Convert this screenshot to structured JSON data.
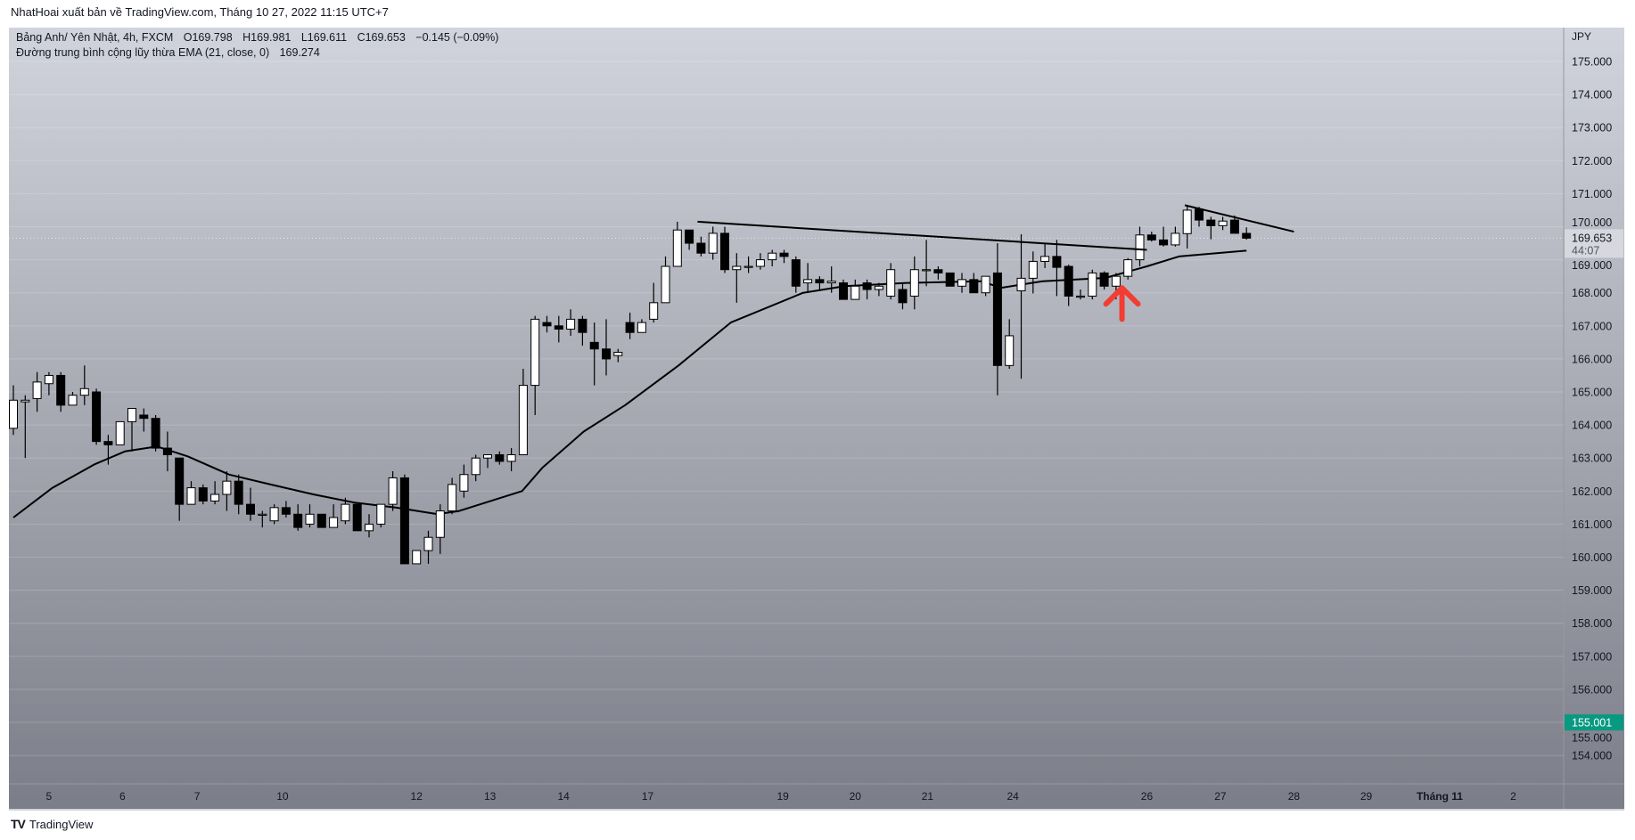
{
  "header": {
    "publisher_line": "NhatHoai xuất bản về TradingView.com, Tháng 10 27, 2022 11:15 UTC+7"
  },
  "legend": {
    "symbol": "Bảng Anh/ Yên Nhật, 4h, FXCM",
    "open": "O169.798",
    "high": "H169.981",
    "low": "L169.611",
    "close": "C169.653",
    "change": "−0.145 (−0.09%)",
    "ema_label": "Đường trung bình cộng lũy thừa EMA (21, close, 0)",
    "ema_value": "169.274"
  },
  "footer": {
    "logo_text": "TradingView"
  },
  "colors": {
    "up": "#ffffff",
    "down": "#000000",
    "ema": "#000000",
    "arrow": "#f23d33",
    "alert_label": "#089981",
    "price_label": "#d6d8de"
  },
  "chart_data": {
    "type": "candlestick",
    "currency": "JPY",
    "ylim": [
      153.2,
      175.6
    ],
    "y_ticks": [
      "175.000",
      "174.000",
      "173.000",
      "172.000",
      "171.000",
      "170.000",
      "169.000",
      "168.000",
      "167.000",
      "166.000",
      "165.000",
      "164.000",
      "163.000",
      "162.000",
      "161.000",
      "160.000",
      "159.000",
      "158.000",
      "157.000",
      "156.000",
      "155.000",
      "154.000"
    ],
    "x_ticks": [
      {
        "label": "5",
        "bar": 3
      },
      {
        "label": "6",
        "bar": 9.2
      },
      {
        "label": "7",
        "bar": 15.5
      },
      {
        "label": "10",
        "bar": 22.7
      },
      {
        "label": "12",
        "bar": 34
      },
      {
        "label": "13",
        "bar": 40.2
      },
      {
        "label": "14",
        "bar": 46.4
      },
      {
        "label": "17",
        "bar": 53.5
      },
      {
        "label": "19",
        "bar": 64.9
      },
      {
        "label": "20",
        "bar": 71
      },
      {
        "label": "21",
        "bar": 77.1
      },
      {
        "label": "24",
        "bar": 84.3
      },
      {
        "label": "26",
        "bar": 95.6
      },
      {
        "label": "27",
        "bar": 101.8
      },
      {
        "label": "28",
        "bar": 108
      },
      {
        "label": "29",
        "bar": 114.1
      },
      {
        "label": "Tháng 11",
        "bar": 120.3,
        "bold": true
      },
      {
        "label": "2",
        "bar": 126.5
      }
    ],
    "grid": true,
    "ohlc": [
      [
        163.9,
        165.2,
        163.7,
        164.75
      ],
      [
        164.7,
        164.9,
        163.0,
        164.75
      ],
      [
        164.8,
        165.6,
        164.4,
        165.3
      ],
      [
        165.25,
        165.6,
        164.9,
        165.5
      ],
      [
        165.5,
        165.6,
        164.4,
        164.6
      ],
      [
        164.6,
        165.0,
        164.6,
        164.9
      ],
      [
        164.9,
        165.8,
        164.6,
        165.1
      ],
      [
        165.0,
        165.1,
        163.4,
        163.5
      ],
      [
        163.5,
        163.7,
        162.8,
        163.4
      ],
      [
        163.4,
        164.1,
        163.4,
        164.1
      ],
      [
        164.1,
        164.5,
        163.2,
        164.5
      ],
      [
        164.3,
        164.5,
        163.8,
        164.2
      ],
      [
        164.2,
        164.3,
        163.2,
        163.3
      ],
      [
        163.3,
        163.8,
        162.6,
        163.1
      ],
      [
        163.0,
        163.0,
        161.1,
        161.6
      ],
      [
        161.6,
        162.3,
        161.6,
        162.1
      ],
      [
        162.1,
        162.2,
        161.6,
        161.7
      ],
      [
        161.7,
        162.3,
        161.6,
        161.9
      ],
      [
        161.9,
        162.6,
        161.4,
        162.3
      ],
      [
        162.3,
        162.5,
        161.3,
        161.6
      ],
      [
        161.6,
        162.1,
        161.1,
        161.3
      ],
      [
        161.3,
        161.4,
        160.9,
        161.3
      ],
      [
        161.1,
        161.6,
        161.0,
        161.5
      ],
      [
        161.5,
        161.7,
        161.2,
        161.3
      ],
      [
        161.3,
        161.6,
        160.8,
        160.9
      ],
      [
        161.0,
        161.6,
        160.9,
        161.3
      ],
      [
        161.3,
        161.3,
        160.9,
        160.9
      ],
      [
        160.9,
        161.6,
        160.9,
        161.2
      ],
      [
        161.1,
        161.8,
        161.0,
        161.6
      ],
      [
        161.6,
        161.6,
        160.8,
        160.8
      ],
      [
        160.8,
        161.3,
        160.6,
        161.0
      ],
      [
        161.0,
        161.6,
        160.9,
        161.6
      ],
      [
        161.6,
        162.6,
        161.4,
        162.4
      ],
      [
        162.4,
        162.5,
        159.8,
        159.8
      ],
      [
        159.8,
        160.2,
        159.8,
        160.2
      ],
      [
        160.2,
        160.8,
        159.8,
        160.6
      ],
      [
        160.6,
        161.6,
        160.1,
        161.4
      ],
      [
        161.4,
        162.4,
        161.3,
        162.2
      ],
      [
        162.0,
        162.8,
        161.8,
        162.5
      ],
      [
        162.5,
        163.1,
        162.3,
        163.0
      ],
      [
        163.0,
        163.1,
        162.7,
        163.1
      ],
      [
        163.1,
        163.2,
        162.8,
        162.9
      ],
      [
        162.9,
        163.3,
        162.6,
        163.1
      ],
      [
        163.1,
        165.7,
        163.1,
        165.2
      ],
      [
        165.2,
        167.3,
        164.3,
        167.2
      ],
      [
        167.1,
        167.3,
        166.8,
        167.0
      ],
      [
        167.0,
        167.3,
        166.5,
        166.9
      ],
      [
        166.9,
        167.5,
        166.7,
        167.2
      ],
      [
        167.2,
        167.3,
        166.4,
        166.8
      ],
      [
        166.5,
        167.1,
        165.2,
        166.3
      ],
      [
        166.3,
        167.2,
        165.5,
        166.0
      ],
      [
        166.1,
        166.3,
        165.9,
        166.2
      ],
      [
        167.1,
        167.4,
        166.6,
        166.8
      ],
      [
        166.8,
        167.2,
        166.8,
        167.1
      ],
      [
        167.2,
        168.3,
        167.1,
        167.7
      ],
      [
        167.7,
        169.1,
        167.7,
        168.8
      ],
      [
        168.8,
        170.15,
        168.8,
        169.9
      ],
      [
        169.9,
        169.9,
        169.3,
        169.5
      ],
      [
        169.5,
        169.7,
        169.1,
        169.2
      ],
      [
        169.2,
        170.0,
        169.0,
        169.8
      ],
      [
        169.8,
        170.0,
        168.6,
        168.7
      ],
      [
        168.7,
        169.2,
        167.7,
        168.8
      ],
      [
        168.8,
        169.1,
        168.6,
        168.8
      ],
      [
        168.8,
        169.2,
        168.7,
        169.0
      ],
      [
        169.0,
        169.3,
        168.8,
        169.2
      ],
      [
        169.2,
        169.3,
        168.9,
        169.1
      ],
      [
        169.0,
        169.1,
        168.0,
        168.2
      ],
      [
        168.3,
        168.9,
        168.0,
        168.4
      ],
      [
        168.4,
        168.5,
        168.1,
        168.3
      ],
      [
        168.3,
        168.8,
        168.0,
        168.35
      ],
      [
        168.3,
        168.4,
        167.8,
        167.8
      ],
      [
        167.8,
        168.4,
        167.8,
        168.2
      ],
      [
        168.3,
        168.4,
        167.8,
        168.1
      ],
      [
        168.1,
        168.3,
        167.9,
        168.2
      ],
      [
        167.9,
        168.9,
        167.8,
        168.7
      ],
      [
        168.1,
        168.3,
        167.5,
        167.7
      ],
      [
        167.9,
        169.1,
        167.5,
        168.7
      ],
      [
        168.7,
        169.6,
        168.2,
        168.7
      ],
      [
        168.7,
        168.8,
        168.4,
        168.6
      ],
      [
        168.6,
        168.6,
        168.2,
        168.2
      ],
      [
        168.2,
        168.6,
        168.0,
        168.4
      ],
      [
        168.4,
        168.6,
        168.0,
        168.0
      ],
      [
        168.0,
        168.5,
        167.9,
        168.5
      ],
      [
        168.6,
        169.5,
        164.9,
        165.8
      ],
      [
        165.8,
        167.2,
        165.7,
        166.7
      ],
      [
        168.06,
        169.77,
        165.4,
        168.44
      ],
      [
        168.44,
        169.25,
        167.98,
        168.95
      ],
      [
        168.95,
        169.5,
        168.75,
        169.1
      ],
      [
        169.1,
        169.6,
        167.9,
        168.77
      ],
      [
        168.8,
        168.85,
        167.6,
        167.9
      ],
      [
        167.9,
        168.1,
        167.8,
        167.9
      ],
      [
        167.9,
        168.7,
        167.8,
        168.6
      ],
      [
        168.6,
        168.65,
        168.1,
        168.2
      ],
      [
        168.2,
        168.6,
        167.8,
        168.5
      ],
      [
        168.5,
        169.05,
        168.4,
        169.0
      ],
      [
        169.0,
        170.0,
        168.8,
        169.75
      ],
      [
        169.75,
        169.85,
        169.55,
        169.6
      ],
      [
        169.6,
        170.0,
        169.4,
        169.45
      ],
      [
        169.45,
        170.0,
        169.4,
        169.8
      ],
      [
        169.79,
        170.66,
        169.34,
        170.5
      ],
      [
        170.53,
        170.6,
        170.0,
        170.2
      ],
      [
        170.2,
        170.3,
        169.62,
        170.03
      ],
      [
        170.03,
        170.3,
        169.9,
        170.17
      ],
      [
        170.2,
        170.34,
        169.8,
        169.8
      ],
      [
        169.798,
        169.981,
        169.611,
        169.653
      ]
    ],
    "ema": [
      {
        "bar": 0,
        "value": 161.2
      },
      {
        "bar": 3.3,
        "value": 162.1
      },
      {
        "bar": 6.8,
        "value": 162.8
      },
      {
        "bar": 9.4,
        "value": 163.2
      },
      {
        "bar": 12.1,
        "value": 163.35
      },
      {
        "bar": 14.7,
        "value": 163.05
      },
      {
        "bar": 18.2,
        "value": 162.5
      },
      {
        "bar": 21.7,
        "value": 162.2
      },
      {
        "bar": 25.3,
        "value": 161.9
      },
      {
        "bar": 28.8,
        "value": 161.65
      },
      {
        "bar": 32.3,
        "value": 161.5
      },
      {
        "bar": 35.8,
        "value": 161.3
      },
      {
        "bar": 37.6,
        "value": 161.4
      },
      {
        "bar": 42.9,
        "value": 162.0
      },
      {
        "bar": 44.6,
        "value": 162.7
      },
      {
        "bar": 48.1,
        "value": 163.8
      },
      {
        "bar": 51.6,
        "value": 164.6
      },
      {
        "bar": 56.1,
        "value": 165.8
      },
      {
        "bar": 60.5,
        "value": 167.1
      },
      {
        "bar": 66.6,
        "value": 168.0
      },
      {
        "bar": 70.1,
        "value": 168.2
      },
      {
        "bar": 75.4,
        "value": 168.3
      },
      {
        "bar": 81.6,
        "value": 168.35
      },
      {
        "bar": 83.3,
        "value": 168.15
      },
      {
        "bar": 86.8,
        "value": 168.35
      },
      {
        "bar": 92.1,
        "value": 168.45
      },
      {
        "bar": 95.6,
        "value": 168.8
      },
      {
        "bar": 98.3,
        "value": 169.1
      },
      {
        "bar": 104,
        "value": 169.274
      }
    ],
    "trendlines": [
      {
        "from": {
          "bar": 57.7,
          "price": 170.15
        },
        "to": {
          "bar": 95.6,
          "price": 169.3
        }
      },
      {
        "from": {
          "bar": 98.8,
          "price": 170.65
        },
        "to": {
          "bar": 108,
          "price": 169.85
        }
      }
    ],
    "arrow": {
      "bar": 93.5,
      "from_price": 167.2,
      "to_price": 168.2,
      "direction": "up"
    },
    "last_price": {
      "price": 169.653,
      "label": "169.653",
      "countdown": "44:07"
    },
    "alert_price": {
      "price": 155.001,
      "label": "155.001"
    }
  }
}
